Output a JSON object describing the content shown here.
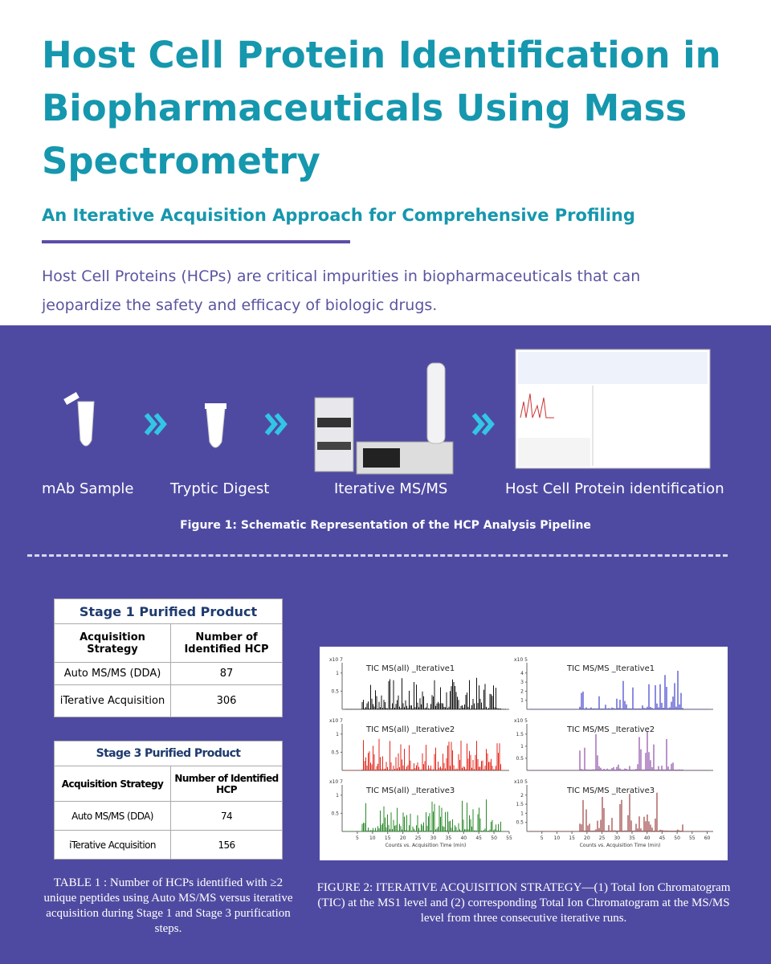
{
  "header": {
    "title": "Host Cell Protein Identification in Biopharmaceuticals Using Mass Spectrometry",
    "subtitle": "An Iterative Acquisition Approach for Comprehensive Profiling",
    "intro": "Host Cell Proteins (HCPs) are critical impurities in biopharmaceuticals that can jeopardize the safety and efficacy of biologic drugs."
  },
  "figure1": {
    "steps": [
      "mAb Sample",
      "Tryptic Digest",
      "Iterative MS/MS",
      "Host Cell Protein identification"
    ],
    "caption": "Figure 1: Schematic Representation of the HCP Analysis Pipeline"
  },
  "tables": [
    {
      "title": "Stage 1 Purified Product",
      "header": [
        "Acquisition Strategy",
        "Number of Identified HCP"
      ],
      "rows": [
        [
          "Auto MS/MS (DDA)",
          87
        ],
        [
          "iTerative Acquisition",
          306
        ]
      ]
    },
    {
      "title": "Stage 3 Purified Product",
      "header": [
        "Acquisition Strategy",
        "Number of Identified HCP"
      ],
      "rows": [
        [
          "Auto MS/MS (DDA)",
          74
        ],
        [
          "iTerative Acquisition",
          156
        ]
      ]
    }
  ],
  "table_caption": "TABLE 1 : Number of HCPs identified with ≥2 unique peptides using Auto MS/MS versus iterative acquisition during Stage 1 and Stage 3 purification steps.",
  "figure2": {
    "panels": [
      {
        "title": "TIC MS(all) _Iterative1",
        "scale": "x10 7",
        "yticks": [
          0.5,
          1
        ]
      },
      {
        "title": "TIC MS/MS _Iterative1",
        "scale": "x10 5",
        "yticks": [
          1,
          2,
          3,
          4
        ]
      },
      {
        "title": "TIC MS(all) _Iterative2",
        "scale": "x10 7",
        "yticks": [
          0.5,
          1
        ]
      },
      {
        "title": "TIC MS/MS _Iterative2",
        "scale": "x10 5",
        "yticks": [
          0.5,
          1,
          1.5
        ]
      },
      {
        "title": "TIC MS(all) _Iterative3",
        "scale": "x10 7",
        "yticks": [
          0.5,
          1
        ]
      },
      {
        "title": "TIC MS/MS _Iterative3",
        "scale": "x10 5",
        "yticks": [
          0.5,
          1,
          1.5,
          2
        ]
      }
    ],
    "xticks_left": [
      5,
      10,
      15,
      20,
      25,
      30,
      35,
      40,
      45,
      50,
      55
    ],
    "xticks_right": [
      5,
      10,
      15,
      20,
      25,
      30,
      35,
      40,
      45,
      50,
      55,
      60
    ],
    "xaxis_label": "Counts vs. Acquisition Time (min)",
    "caption": "FIGURE 2: ITERATIVE ACQUISITION STRATEGY—(1) Total Ion Chromatogram (TIC) at the MS1 level and (2) corresponding Total Ion Chromatogram at the MS/MS level from three consecutive iterative runs."
  }
}
